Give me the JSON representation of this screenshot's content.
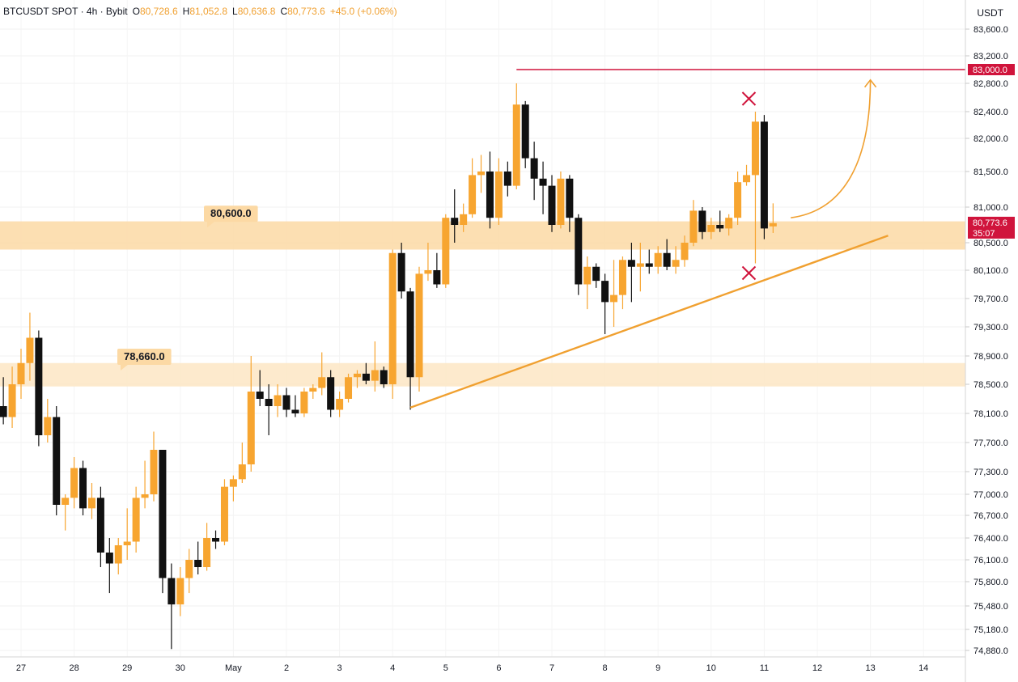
{
  "header": {
    "symbol_info": "BTCUSDT SPOT · 4h · Bybit",
    "open_label": "O",
    "open": "80,728.6",
    "high_label": "H",
    "high": "81,052.8",
    "low_label": "L",
    "low": "80,636.8",
    "close_label": "C",
    "close": "80,773.6",
    "change": "+45.0 (+0.06%)"
  },
  "price_axis": {
    "unit": "USDT",
    "ticks": [
      "83,600.0",
      "83,200.0",
      "82,800.0",
      "82,400.0",
      "82,000.0",
      "81,500.0",
      "81,000.0",
      "80,500.0",
      "80,100.0",
      "79,700.0",
      "79,300.0",
      "78,900.0",
      "78,500.0",
      "78,100.0",
      "77,700.0",
      "77,300.0",
      "77,000.0",
      "76,700.0",
      "76,400.0",
      "76,100.0",
      "75,800.0",
      "75,480.0",
      "75,180.0",
      "74,880.0"
    ],
    "resistance_label": "83,000.0",
    "last_price_label": "80,773.6",
    "countdown_label": "35:07"
  },
  "time_axis": {
    "labels": [
      "27",
      "28",
      "29",
      "30",
      "May",
      "2",
      "3",
      "4",
      "5",
      "6",
      "7",
      "8",
      "9",
      "10",
      "11",
      "12",
      "13",
      "14"
    ]
  },
  "annotations": {
    "zone_upper_label": "80,600.0",
    "zone_lower_label": "78,660.0"
  },
  "colors": {
    "bull": "#f7a530",
    "bear": "#111111",
    "zone": "#fcd9a4",
    "resistance": "#d0143c",
    "trend": "#f0a030",
    "marker": "#d0143c"
  },
  "chart_data": {
    "type": "candlestick",
    "timeframe": "4h",
    "x_unit": "day",
    "ylim": [
      74880,
      83600
    ],
    "x_days": [
      "Apr 27",
      "Apr 28",
      "Apr 29",
      "Apr 30",
      "May 1",
      "May 2",
      "May 3",
      "May 4",
      "May 5",
      "May 6",
      "May 7",
      "May 8",
      "May 9",
      "May 10",
      "May 11",
      "May 12",
      "May 13",
      "May 14"
    ],
    "candles": [
      {
        "d": "2025-04-26T16:00",
        "o": 78200,
        "h": 78600,
        "l": 77950,
        "c": 78050
      },
      {
        "d": "2025-04-26T20:00",
        "o": 78050,
        "h": 78750,
        "l": 77900,
        "c": 78500
      },
      {
        "d": "2025-04-27T00:00",
        "o": 78500,
        "h": 79000,
        "l": 78300,
        "c": 78800
      },
      {
        "d": "2025-04-27T04:00",
        "o": 78800,
        "h": 79500,
        "l": 78550,
        "c": 79150
      },
      {
        "d": "2025-04-27T08:00",
        "o": 79150,
        "h": 79250,
        "l": 77650,
        "c": 77800
      },
      {
        "d": "2025-04-27T12:00",
        "o": 77800,
        "h": 78300,
        "l": 77700,
        "c": 78050
      },
      {
        "d": "2025-04-27T16:00",
        "o": 78050,
        "h": 78200,
        "l": 76700,
        "c": 76850
      },
      {
        "d": "2025-04-27T20:00",
        "o": 76850,
        "h": 77000,
        "l": 76500,
        "c": 76950
      },
      {
        "d": "2025-04-28T00:00",
        "o": 76950,
        "h": 77500,
        "l": 76800,
        "c": 77350
      },
      {
        "d": "2025-04-28T04:00",
        "o": 77350,
        "h": 77450,
        "l": 76700,
        "c": 76800
      },
      {
        "d": "2025-04-28T08:00",
        "o": 76800,
        "h": 77150,
        "l": 76650,
        "c": 76950
      },
      {
        "d": "2025-04-28T12:00",
        "o": 76950,
        "h": 77100,
        "l": 76000,
        "c": 76200
      },
      {
        "d": "2025-04-28T16:00",
        "o": 76200,
        "h": 76400,
        "l": 75650,
        "c": 76050
      },
      {
        "d": "2025-04-28T20:00",
        "o": 76050,
        "h": 76400,
        "l": 75900,
        "c": 76300
      },
      {
        "d": "2025-04-29T00:00",
        "o": 76300,
        "h": 76800,
        "l": 76100,
        "c": 76350
      },
      {
        "d": "2025-04-29T04:00",
        "o": 76350,
        "h": 77100,
        "l": 76200,
        "c": 76950
      },
      {
        "d": "2025-04-29T08:00",
        "o": 76950,
        "h": 77450,
        "l": 76800,
        "c": 77000
      },
      {
        "d": "2025-04-29T12:00",
        "o": 77000,
        "h": 77850,
        "l": 76900,
        "c": 77600
      },
      {
        "d": "2025-04-29T16:00",
        "o": 77600,
        "h": 77600,
        "l": 75650,
        "c": 75850
      },
      {
        "d": "2025-04-29T20:00",
        "o": 75850,
        "h": 76050,
        "l": 74900,
        "c": 75500
      },
      {
        "d": "2025-04-30T00:00",
        "o": 75500,
        "h": 76000,
        "l": 75350,
        "c": 75850
      },
      {
        "d": "2025-04-30T04:00",
        "o": 75850,
        "h": 76250,
        "l": 75650,
        "c": 76100
      },
      {
        "d": "2025-04-30T08:00",
        "o": 76100,
        "h": 76350,
        "l": 75900,
        "c": 76000
      },
      {
        "d": "2025-04-30T12:00",
        "o": 76000,
        "h": 76600,
        "l": 75950,
        "c": 76400
      },
      {
        "d": "2025-04-30T16:00",
        "o": 76400,
        "h": 76500,
        "l": 76250,
        "c": 76350
      },
      {
        "d": "2025-04-30T20:00",
        "o": 76350,
        "h": 77200,
        "l": 76300,
        "c": 77100
      },
      {
        "d": "2025-05-01T00:00",
        "o": 77100,
        "h": 77250,
        "l": 76900,
        "c": 77200
      },
      {
        "d": "2025-05-01T04:00",
        "o": 77200,
        "h": 77700,
        "l": 77150,
        "c": 77400
      },
      {
        "d": "2025-05-01T08:00",
        "o": 77400,
        "h": 78900,
        "l": 77300,
        "c": 78400
      },
      {
        "d": "2025-05-01T12:00",
        "o": 78400,
        "h": 78700,
        "l": 78200,
        "c": 78300
      },
      {
        "d": "2025-05-01T16:00",
        "o": 78300,
        "h": 78500,
        "l": 77800,
        "c": 78200
      },
      {
        "d": "2025-05-01T20:00",
        "o": 78200,
        "h": 78500,
        "l": 78050,
        "c": 78350
      },
      {
        "d": "2025-05-02T00:00",
        "o": 78350,
        "h": 78450,
        "l": 78050,
        "c": 78150
      },
      {
        "d": "2025-05-02T04:00",
        "o": 78150,
        "h": 78350,
        "l": 78050,
        "c": 78100
      },
      {
        "d": "2025-05-02T08:00",
        "o": 78100,
        "h": 78450,
        "l": 78050,
        "c": 78400
      },
      {
        "d": "2025-05-02T12:00",
        "o": 78400,
        "h": 78500,
        "l": 78300,
        "c": 78450
      },
      {
        "d": "2025-05-02T16:00",
        "o": 78450,
        "h": 78950,
        "l": 78350,
        "c": 78600
      },
      {
        "d": "2025-05-02T20:00",
        "o": 78600,
        "h": 78700,
        "l": 78050,
        "c": 78150
      },
      {
        "d": "2025-05-03T00:00",
        "o": 78150,
        "h": 78400,
        "l": 78050,
        "c": 78300
      },
      {
        "d": "2025-05-03T04:00",
        "o": 78300,
        "h": 78650,
        "l": 78250,
        "c": 78600
      },
      {
        "d": "2025-05-03T08:00",
        "o": 78600,
        "h": 78700,
        "l": 78450,
        "c": 78650
      },
      {
        "d": "2025-05-03T12:00",
        "o": 78650,
        "h": 78800,
        "l": 78500,
        "c": 78550
      },
      {
        "d": "2025-05-03T16:00",
        "o": 78550,
        "h": 79100,
        "l": 78400,
        "c": 78700
      },
      {
        "d": "2025-05-03T20:00",
        "o": 78700,
        "h": 78750,
        "l": 78450,
        "c": 78500
      },
      {
        "d": "2025-05-04T00:00",
        "o": 78500,
        "h": 80400,
        "l": 78300,
        "c": 80350
      },
      {
        "d": "2025-05-04T04:00",
        "o": 80350,
        "h": 80500,
        "l": 79700,
        "c": 79800
      },
      {
        "d": "2025-05-04T08:00",
        "o": 79800,
        "h": 79850,
        "l": 78150,
        "c": 78600
      },
      {
        "d": "2025-05-04T12:00",
        "o": 78600,
        "h": 80150,
        "l": 78400,
        "c": 80050
      },
      {
        "d": "2025-05-04T16:00",
        "o": 80050,
        "h": 80500,
        "l": 79950,
        "c": 80100
      },
      {
        "d": "2025-05-04T20:00",
        "o": 80100,
        "h": 80350,
        "l": 79850,
        "c": 79900
      },
      {
        "d": "2025-05-05T00:00",
        "o": 79900,
        "h": 80900,
        "l": 79850,
        "c": 80850
      },
      {
        "d": "2025-05-05T04:00",
        "o": 80850,
        "h": 81250,
        "l": 80500,
        "c": 80750
      },
      {
        "d": "2025-05-05T08:00",
        "o": 80750,
        "h": 81050,
        "l": 80650,
        "c": 80900
      },
      {
        "d": "2025-05-05T12:00",
        "o": 80900,
        "h": 81700,
        "l": 80850,
        "c": 81450
      },
      {
        "d": "2025-05-05T16:00",
        "o": 81450,
        "h": 81750,
        "l": 81200,
        "c": 81500
      },
      {
        "d": "2025-05-05T20:00",
        "o": 81500,
        "h": 81800,
        "l": 80700,
        "c": 80850
      },
      {
        "d": "2025-05-06T00:00",
        "o": 80850,
        "h": 81700,
        "l": 80750,
        "c": 81500
      },
      {
        "d": "2025-05-06T04:00",
        "o": 81500,
        "h": 81650,
        "l": 81150,
        "c": 81300
      },
      {
        "d": "2025-05-06T08:00",
        "o": 81300,
        "h": 82800,
        "l": 81250,
        "c": 82500
      },
      {
        "d": "2025-05-06T12:00",
        "o": 82500,
        "h": 82550,
        "l": 81550,
        "c": 81700
      },
      {
        "d": "2025-05-06T16:00",
        "o": 81700,
        "h": 81950,
        "l": 81100,
        "c": 81400
      },
      {
        "d": "2025-05-06T20:00",
        "o": 81400,
        "h": 81650,
        "l": 80900,
        "c": 81300
      },
      {
        "d": "2025-05-07T00:00",
        "o": 81300,
        "h": 81450,
        "l": 80650,
        "c": 80750
      },
      {
        "d": "2025-05-07T04:00",
        "o": 80750,
        "h": 81500,
        "l": 80700,
        "c": 81400
      },
      {
        "d": "2025-05-07T08:00",
        "o": 81400,
        "h": 81450,
        "l": 80650,
        "c": 80850
      },
      {
        "d": "2025-05-07T12:00",
        "o": 80850,
        "h": 80900,
        "l": 79750,
        "c": 79900
      },
      {
        "d": "2025-05-07T16:00",
        "o": 79900,
        "h": 80300,
        "l": 79550,
        "c": 80150
      },
      {
        "d": "2025-05-07T20:00",
        "o": 80150,
        "h": 80200,
        "l": 79850,
        "c": 79950
      },
      {
        "d": "2025-05-08T00:00",
        "o": 79950,
        "h": 80050,
        "l": 79200,
        "c": 79650
      },
      {
        "d": "2025-05-08T04:00",
        "o": 79650,
        "h": 80250,
        "l": 79300,
        "c": 79750
      },
      {
        "d": "2025-05-08T08:00",
        "o": 79750,
        "h": 80300,
        "l": 79550,
        "c": 80250
      },
      {
        "d": "2025-05-08T12:00",
        "o": 80250,
        "h": 80500,
        "l": 79650,
        "c": 80150
      },
      {
        "d": "2025-05-08T16:00",
        "o": 80150,
        "h": 80500,
        "l": 79800,
        "c": 80200
      },
      {
        "d": "2025-05-08T20:00",
        "o": 80200,
        "h": 80400,
        "l": 80050,
        "c": 80150
      },
      {
        "d": "2025-05-09T00:00",
        "o": 80150,
        "h": 80450,
        "l": 80050,
        "c": 80350
      },
      {
        "d": "2025-05-09T04:00",
        "o": 80350,
        "h": 80550,
        "l": 80100,
        "c": 80150
      },
      {
        "d": "2025-05-09T08:00",
        "o": 80150,
        "h": 80450,
        "l": 80050,
        "c": 80250
      },
      {
        "d": "2025-05-09T12:00",
        "o": 80250,
        "h": 80600,
        "l": 80150,
        "c": 80500
      },
      {
        "d": "2025-05-09T16:00",
        "o": 80500,
        "h": 81100,
        "l": 80450,
        "c": 80950
      },
      {
        "d": "2025-05-09T20:00",
        "o": 80950,
        "h": 81000,
        "l": 80550,
        "c": 80650
      },
      {
        "d": "2025-05-10T00:00",
        "o": 80650,
        "h": 80850,
        "l": 80550,
        "c": 80750
      },
      {
        "d": "2025-05-10T04:00",
        "o": 80750,
        "h": 80950,
        "l": 80650,
        "c": 80700
      },
      {
        "d": "2025-05-10T08:00",
        "o": 80700,
        "h": 80900,
        "l": 80600,
        "c": 80850
      },
      {
        "d": "2025-05-10T12:00",
        "o": 80850,
        "h": 81500,
        "l": 80750,
        "c": 81350
      },
      {
        "d": "2025-05-10T16:00",
        "o": 81350,
        "h": 81600,
        "l": 81300,
        "c": 81450
      },
      {
        "d": "2025-05-10T20:00",
        "o": 81450,
        "h": 82400,
        "l": 80200,
        "c": 82250
      },
      {
        "d": "2025-05-11T00:00",
        "o": 82250,
        "h": 82350,
        "l": 80550,
        "c": 80700
      },
      {
        "d": "2025-05-11T04:00",
        "o": 80729,
        "h": 81053,
        "l": 80637,
        "c": 80774
      }
    ]
  }
}
